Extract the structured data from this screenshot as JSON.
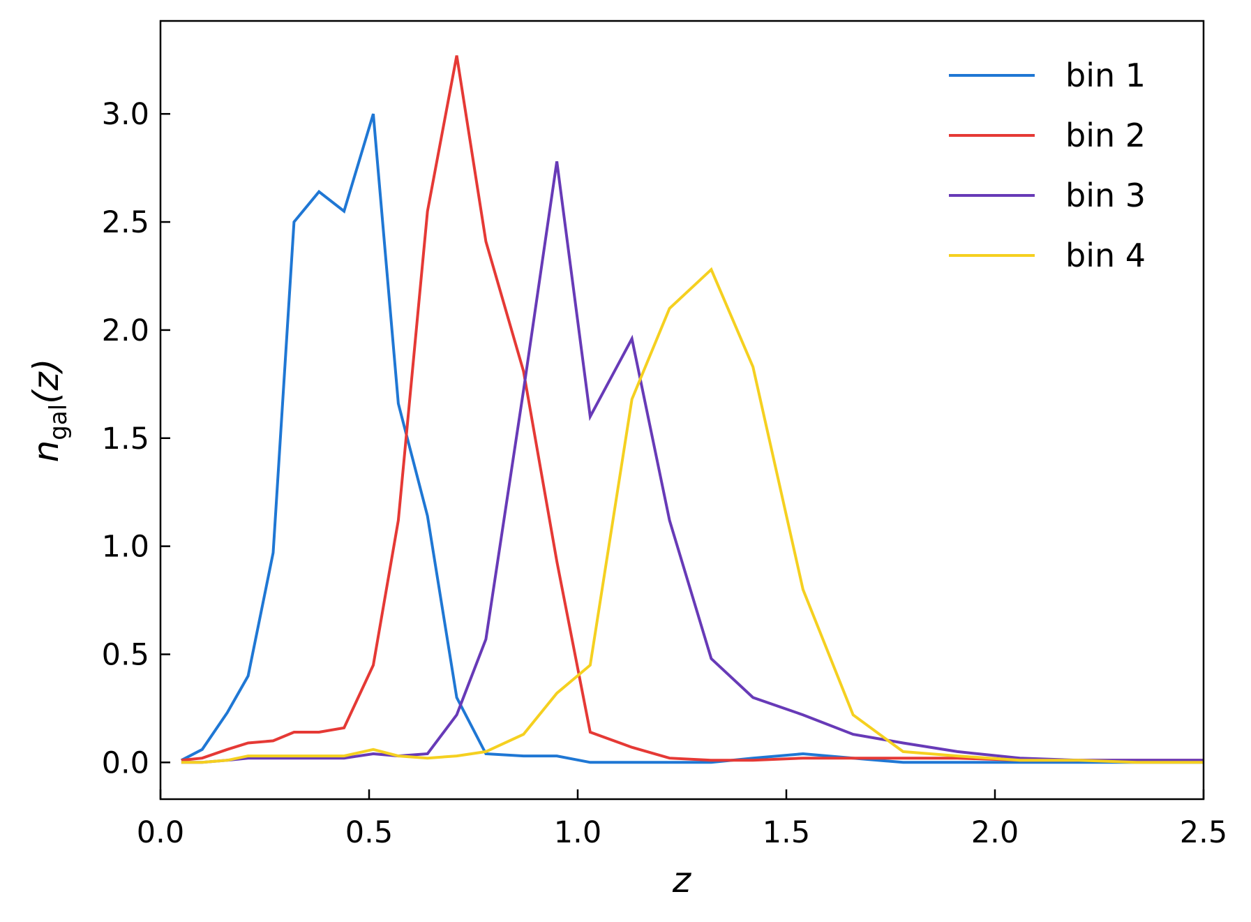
{
  "chart_data": {
    "type": "line",
    "xlabel": "z",
    "ylabel": {
      "base": "n",
      "subscript": "gal",
      "suffix": "(z)"
    },
    "xlim": [
      0.0,
      2.5
    ],
    "ylim": [
      -0.17,
      3.43
    ],
    "xticks": [
      "0.0",
      "0.5",
      "1.0",
      "1.5",
      "2.0",
      "2.5"
    ],
    "yticks": [
      "0.0",
      "0.5",
      "1.0",
      "1.5",
      "2.0",
      "2.5",
      "3.0"
    ],
    "legend_position": "top-right",
    "grid": false,
    "series": [
      {
        "name": "bin 1",
        "color": "#1f77d4",
        "x": [
          0.05,
          0.1,
          0.16,
          0.21,
          0.27,
          0.32,
          0.38,
          0.44,
          0.51,
          0.57,
          0.64,
          0.71,
          0.78,
          0.87,
          0.95,
          1.03,
          1.13,
          1.22,
          1.32,
          1.42,
          1.54,
          1.66,
          1.78,
          1.91,
          2.06,
          2.2,
          2.34,
          2.5
        ],
        "y": [
          0.01,
          0.06,
          0.23,
          0.4,
          0.97,
          2.5,
          2.64,
          2.55,
          3.0,
          1.66,
          1.14,
          0.3,
          0.04,
          0.03,
          0.03,
          0.0,
          0.0,
          0.0,
          0.0,
          0.02,
          0.04,
          0.02,
          0.0,
          0.0,
          0.0,
          0.0,
          0.0,
          0.0
        ]
      },
      {
        "name": "bin 2",
        "color": "#e53935",
        "x": [
          0.05,
          0.1,
          0.16,
          0.21,
          0.27,
          0.32,
          0.38,
          0.44,
          0.51,
          0.57,
          0.64,
          0.71,
          0.78,
          0.87,
          0.95,
          1.03,
          1.13,
          1.22,
          1.32,
          1.42,
          1.54,
          1.66,
          1.78,
          1.91,
          2.06,
          2.2,
          2.34,
          2.5
        ],
        "y": [
          0.01,
          0.02,
          0.06,
          0.09,
          0.1,
          0.14,
          0.14,
          0.16,
          0.45,
          1.12,
          2.55,
          3.27,
          2.41,
          1.81,
          0.93,
          0.14,
          0.07,
          0.02,
          0.01,
          0.01,
          0.02,
          0.02,
          0.02,
          0.02,
          0.01,
          0.01,
          0.01,
          0.01
        ]
      },
      {
        "name": "bin 3",
        "color": "#673ab7",
        "x": [
          0.05,
          0.1,
          0.16,
          0.21,
          0.27,
          0.32,
          0.38,
          0.44,
          0.51,
          0.57,
          0.64,
          0.71,
          0.78,
          0.87,
          0.95,
          1.03,
          1.13,
          1.22,
          1.32,
          1.42,
          1.54,
          1.66,
          1.78,
          1.91,
          2.06,
          2.2,
          2.34,
          2.5
        ],
        "y": [
          0.0,
          0.0,
          0.01,
          0.02,
          0.02,
          0.02,
          0.02,
          0.02,
          0.04,
          0.03,
          0.04,
          0.22,
          0.57,
          1.72,
          2.78,
          1.6,
          1.96,
          1.12,
          0.48,
          0.3,
          0.22,
          0.13,
          0.09,
          0.05,
          0.02,
          0.01,
          0.01,
          0.01
        ]
      },
      {
        "name": "bin 4",
        "color": "#f5d020",
        "x": [
          0.05,
          0.1,
          0.16,
          0.21,
          0.27,
          0.32,
          0.38,
          0.44,
          0.51,
          0.57,
          0.64,
          0.71,
          0.78,
          0.87,
          0.95,
          1.03,
          1.13,
          1.22,
          1.32,
          1.42,
          1.54,
          1.66,
          1.78,
          1.91,
          2.06,
          2.2,
          2.34,
          2.5
        ],
        "y": [
          0.0,
          0.0,
          0.01,
          0.03,
          0.03,
          0.03,
          0.03,
          0.03,
          0.06,
          0.03,
          0.02,
          0.03,
          0.05,
          0.13,
          0.32,
          0.45,
          1.68,
          2.1,
          2.28,
          1.83,
          0.8,
          0.22,
          0.05,
          0.03,
          0.01,
          0.01,
          0.0,
          0.0
        ]
      }
    ]
  }
}
